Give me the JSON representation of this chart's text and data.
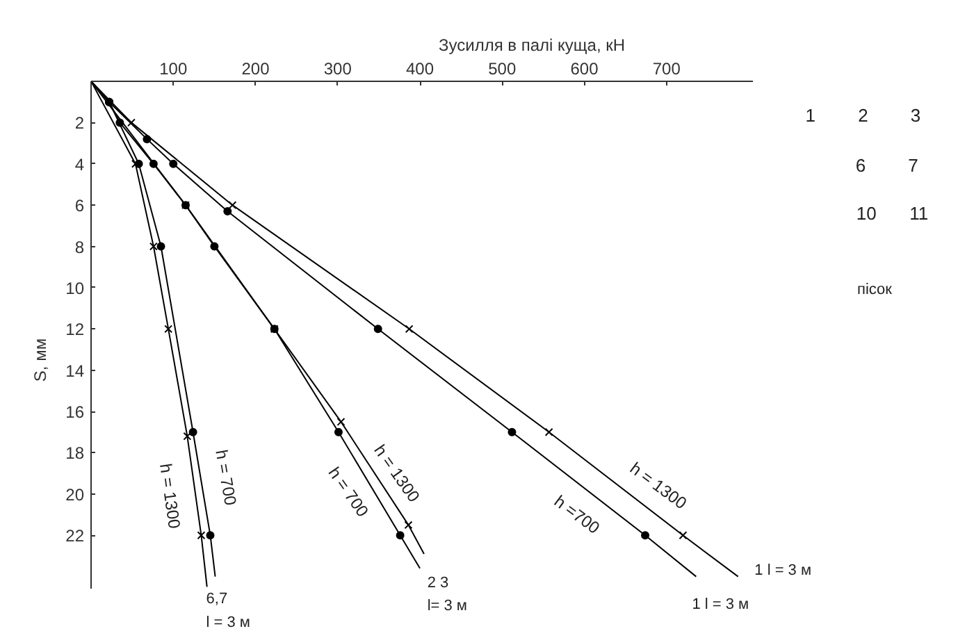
{
  "chart_data": {
    "type": "line",
    "xlabel": "Зусилля в палі куща, кН",
    "ylabel": "S, мм",
    "xlim": [
      0,
      805
    ],
    "ylim": [
      24.6,
      0
    ],
    "xticks": [
      100,
      200,
      300,
      400,
      500,
      600,
      700
    ],
    "yticks": [
      2,
      4,
      6,
      8,
      10,
      12,
      14,
      16,
      18,
      20,
      22
    ],
    "grid": false,
    "line_style": "solid",
    "series": [
      {
        "color": "#000000",
        "marker": "cross",
        "x": [
          0,
          49,
          172,
          387,
          557,
          720,
          787
        ],
        "values": [
          0,
          2,
          6,
          12,
          17,
          22,
          24
        ]
      },
      {
        "color": "#000000",
        "marker": "circle",
        "x": [
          0,
          22,
          68,
          100,
          166,
          349,
          512,
          674,
          736
        ],
        "values": [
          0,
          1,
          2.8,
          4,
          6.3,
          12,
          17,
          22,
          24
        ]
      },
      {
        "color": "#000000",
        "marker": "circle",
        "x": [
          0,
          22,
          35,
          76,
          115,
          150,
          223,
          301,
          376,
          400
        ],
        "values": [
          0,
          1,
          2,
          4,
          6,
          8,
          12,
          17,
          22,
          23.6
        ]
      },
      {
        "color": "#000000",
        "marker": "cross",
        "x": [
          0,
          115,
          223,
          304,
          386,
          405
        ],
        "values": [
          0,
          6,
          12,
          16.5,
          21.5,
          22.9
        ]
      },
      {
        "color": "#000000",
        "marker": "circle",
        "x": [
          0,
          22,
          58,
          85,
          124,
          145,
          151
        ],
        "values": [
          0,
          1,
          4,
          8,
          17,
          22,
          24
        ]
      },
      {
        "color": "#000000",
        "marker": "cross",
        "x": [
          0,
          54,
          76,
          94,
          117,
          134,
          141
        ],
        "values": [
          0,
          4,
          8,
          12,
          17.2,
          22,
          24.5
        ]
      }
    ],
    "annotations": [
      "h = 1300",
      "h =700",
      "h = 1300",
      "h = 700",
      "h = 700",
      "h = 1300",
      "1  l = 3 м",
      "1  l = 3 м",
      "2 3\nl= 3 м",
      "6,7\nl = 3 м",
      "1",
      "2",
      "3",
      "6",
      "7",
      "10",
      "11",
      "пісок"
    ]
  }
}
